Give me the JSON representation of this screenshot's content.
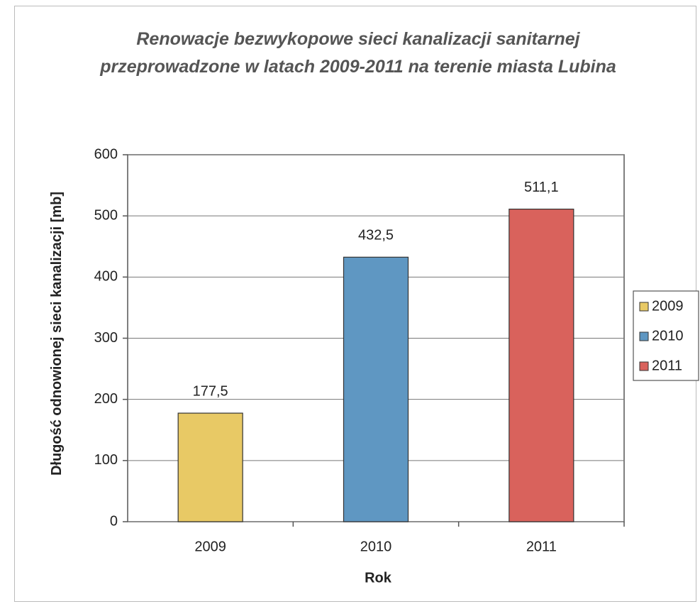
{
  "chart_data": {
    "type": "bar",
    "title": "Renowacje bezwykopowe sieci kanalizacji sanitarnej przeprowadzone w latach 2009-2011 na terenie miasta Lubina",
    "x_label": "Rok",
    "y_label": "Długość odnowionej sieci kanalizacji [mb]",
    "categories": [
      "2009",
      "2010",
      "2011"
    ],
    "values": [
      177.5,
      432.5,
      511.1
    ],
    "value_labels": [
      "177,5",
      "432,5",
      "511,1"
    ],
    "colors": [
      "#e8c965",
      "#5f97c2",
      "#d9625c"
    ],
    "ylim": [
      0,
      600
    ],
    "yticks": [
      0,
      100,
      200,
      300,
      400,
      500,
      600
    ],
    "grid": true,
    "legend": "right"
  }
}
